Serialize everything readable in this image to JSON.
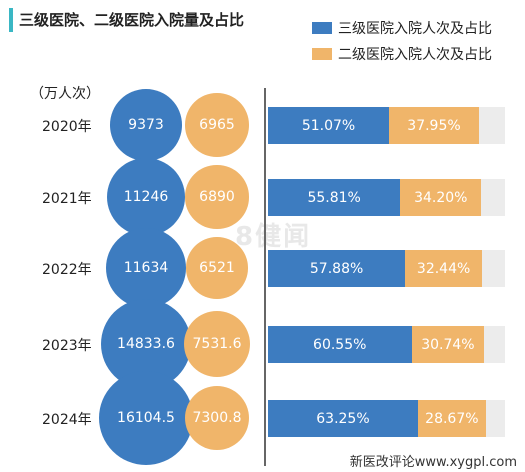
{
  "title": "三级医院、二级医院入院量及占比",
  "unit_label": "（万人次）",
  "watermark": "8健闻",
  "footer": "新医改评论www.xygpl.com",
  "colors": {
    "accent": "#3ab7c4",
    "tertiary": "#3d7cc0",
    "secondary": "#f0b56a",
    "remainder": "#ececec",
    "divider": "#666666"
  },
  "legend": [
    {
      "label": "三级医院入院人次及占比",
      "color": "#3d7cc0"
    },
    {
      "label": "二级医院入院人次及占比",
      "color": "#f0b56a"
    }
  ],
  "chart_data": {
    "type": "bar",
    "categories": [
      "2020年",
      "2021年",
      "2022年",
      "2023年",
      "2024年"
    ],
    "series": [
      {
        "name": "三级医院入院人次及占比",
        "values": [
          9373,
          11246,
          11634,
          14833.6,
          16104.5
        ],
        "value_labels": [
          "9373",
          "11246",
          "11634",
          "14833.6",
          "16104.5"
        ],
        "share": [
          51.07,
          55.81,
          57.88,
          60.55,
          63.25
        ],
        "share_labels": [
          "51.07%",
          "55.81%",
          "57.88%",
          "60.55%",
          "63.25%"
        ]
      },
      {
        "name": "二级医院入院人次及占比",
        "values": [
          6965,
          6890,
          6521,
          7531.6,
          7300.8
        ],
        "value_labels": [
          "6965",
          "6890",
          "6521",
          "7531.6",
          "7300.8"
        ],
        "share": [
          37.95,
          34.2,
          32.44,
          30.74,
          28.67
        ],
        "share_labels": [
          "37.95%",
          "34.20%",
          "32.44%",
          "30.74%",
          "28.67%"
        ]
      }
    ],
    "share_axis_max": 100,
    "unit": "（万人次）",
    "legend_position": "top-right"
  }
}
